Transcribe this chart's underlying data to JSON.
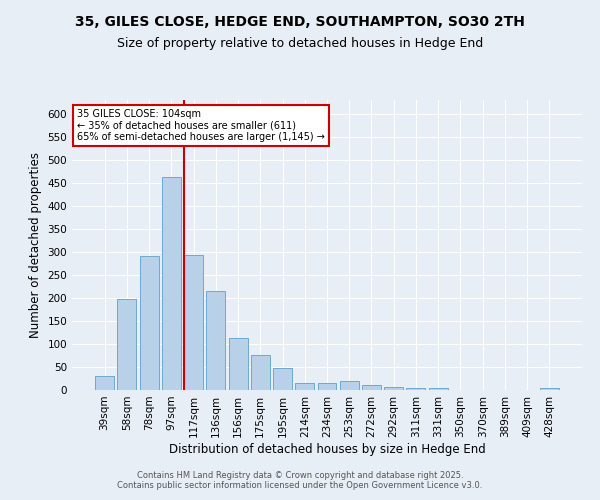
{
  "title": "35, GILES CLOSE, HEDGE END, SOUTHAMPTON, SO30 2TH",
  "subtitle": "Size of property relative to detached houses in Hedge End",
  "xlabel": "Distribution of detached houses by size in Hedge End",
  "ylabel": "Number of detached properties",
  "categories": [
    "39sqm",
    "58sqm",
    "78sqm",
    "97sqm",
    "117sqm",
    "136sqm",
    "156sqm",
    "175sqm",
    "195sqm",
    "214sqm",
    "234sqm",
    "253sqm",
    "272sqm",
    "292sqm",
    "311sqm",
    "331sqm",
    "350sqm",
    "370sqm",
    "389sqm",
    "409sqm",
    "428sqm"
  ],
  "values": [
    30,
    197,
    291,
    462,
    293,
    216,
    113,
    75,
    47,
    15,
    15,
    20,
    10,
    7,
    5,
    5,
    0,
    0,
    0,
    0,
    5
  ],
  "bar_color": "#b8d0e8",
  "bar_edge_color": "#6aaad4",
  "vline_x": 3.57,
  "vline_color": "#cc0000",
  "annotation_text": "35 GILES CLOSE: 104sqm\n← 35% of detached houses are smaller (611)\n65% of semi-detached houses are larger (1,145) →",
  "annotation_box_color": "#ffffff",
  "annotation_box_edge": "#cc0000",
  "footnote": "Contains HM Land Registry data © Crown copyright and database right 2025.\nContains public sector information licensed under the Open Government Licence v3.0.",
  "ylim": [
    0,
    630
  ],
  "background_color": "#e8eef5",
  "plot_bg_color": "#e8eef5",
  "grid_color": "#ffffff",
  "title_fontsize": 10,
  "subtitle_fontsize": 9,
  "tick_fontsize": 7.5,
  "label_fontsize": 8.5,
  "footnote_fontsize": 6.0
}
